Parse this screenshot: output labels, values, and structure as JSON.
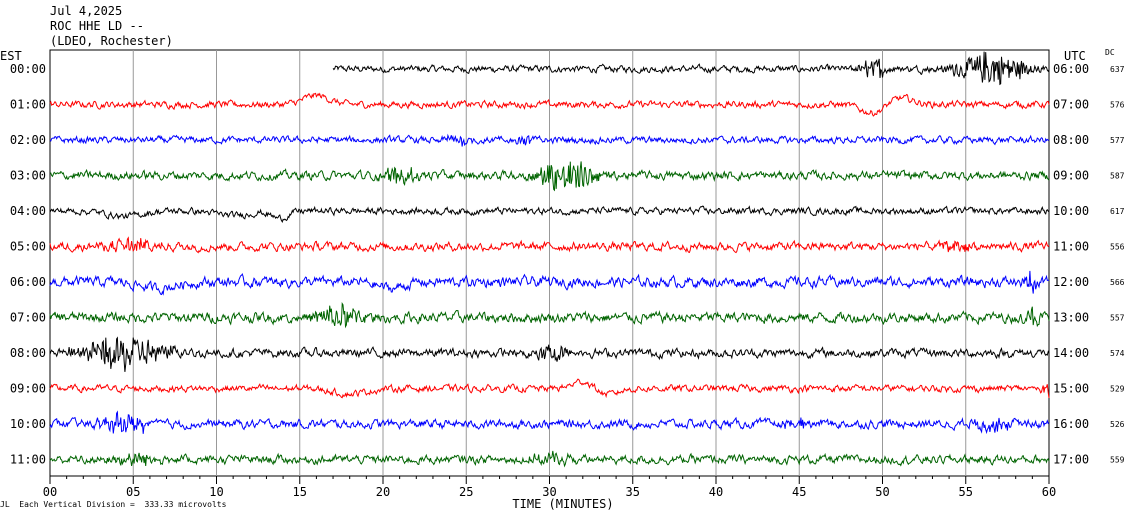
{
  "header": {
    "date": "Jul 4,2025",
    "station": "ROC HHE LD --",
    "network": "(LDEO, Rochester)"
  },
  "left_axis_title": "EST",
  "right_axis_title": "UTC",
  "dc_title": "DC",
  "footer": {
    "scale_note": "Each Vertical Division =  333.33 microvolts",
    "corner_mark": "JL"
  },
  "chart_data": {
    "type": "line",
    "title": "",
    "xlabel": "TIME (MINUTES)",
    "ylabel": "",
    "xlim": [
      0,
      60
    ],
    "xticks": [
      "00",
      "05",
      "10",
      "15",
      "20",
      "25",
      "30",
      "35",
      "40",
      "45",
      "50",
      "55",
      "60"
    ],
    "grid": true,
    "series": [
      {
        "est": "00:00",
        "utc": "06:00",
        "dc": "637",
        "color": "#000000",
        "start_min": 17,
        "noise": 4,
        "events": [
          {
            "t": 49.5,
            "amp": 10,
            "dur": 1.2
          },
          {
            "t": 56.5,
            "amp": 16,
            "dur": 3
          }
        ]
      },
      {
        "est": "01:00",
        "utc": "07:00",
        "dc": "576",
        "color": "#ff0000",
        "start_min": 0,
        "noise": 4,
        "events": [
          {
            "t": 16,
            "amp": -10,
            "dur": 1.5,
            "smooth": true
          },
          {
            "t": 49.5,
            "amp": 10,
            "dur": 1.5,
            "smooth": true
          },
          {
            "t": 51,
            "amp": -8,
            "dur": 1.5,
            "smooth": true
          }
        ]
      },
      {
        "est": "02:00",
        "utc": "08:00",
        "dc": "577",
        "color": "#0000ff",
        "start_min": 0,
        "noise": 4,
        "events": [
          {
            "t": 24.5,
            "amp": 6,
            "dur": 1
          },
          {
            "t": 28.5,
            "amp": 5,
            "dur": 1
          }
        ]
      },
      {
        "est": "03:00",
        "utc": "09:00",
        "dc": "587",
        "color": "#006400",
        "start_min": 0,
        "noise": 5,
        "events": [
          {
            "t": 21,
            "amp": 8,
            "dur": 1.5
          },
          {
            "t": 31,
            "amp": 16,
            "dur": 2.5
          }
        ]
      },
      {
        "est": "04:00",
        "utc": "10:00",
        "dc": "617",
        "color": "#000000",
        "start_min": 0,
        "noise": 4,
        "events": [
          {
            "t": 4.5,
            "amp": 6,
            "dur": 2,
            "smooth": true
          },
          {
            "t": 11,
            "amp": 5,
            "dur": 2,
            "smooth": true
          },
          {
            "t": 13.8,
            "amp": 8,
            "dur": 1,
            "smooth": true
          }
        ]
      },
      {
        "est": "05:00",
        "utc": "11:00",
        "dc": "556",
        "color": "#ff0000",
        "start_min": 0,
        "noise": 5,
        "events": [
          {
            "t": 5,
            "amp": 7,
            "dur": 2
          },
          {
            "t": 54.5,
            "amp": 6,
            "dur": 1.5
          }
        ]
      },
      {
        "est": "06:00",
        "utc": "12:00",
        "dc": "566",
        "color": "#0000ff",
        "start_min": 0,
        "noise": 6,
        "events": [
          {
            "t": 6.5,
            "amp": 7,
            "dur": 2,
            "smooth": true
          },
          {
            "t": 20.5,
            "amp": 7,
            "dur": 1.5,
            "smooth": true
          },
          {
            "t": 59,
            "amp": 9,
            "dur": 0.6
          }
        ]
      },
      {
        "est": "07:00",
        "utc": "13:00",
        "dc": "557",
        "color": "#006400",
        "start_min": 0,
        "noise": 6,
        "events": [
          {
            "t": 17.5,
            "amp": 12,
            "dur": 2
          },
          {
            "t": 59,
            "amp": 10,
            "dur": 0.6
          }
        ]
      },
      {
        "est": "08:00",
        "utc": "14:00",
        "dc": "574",
        "color": "#000000",
        "start_min": 0,
        "noise": 5,
        "events": [
          {
            "t": 4.5,
            "amp": 17,
            "dur": 3.5
          },
          {
            "t": 30,
            "amp": 8,
            "dur": 1.5
          }
        ]
      },
      {
        "est": "09:00",
        "utc": "15:00",
        "dc": "529",
        "color": "#ff0000",
        "start_min": 0,
        "noise": 4,
        "events": [
          {
            "t": 18,
            "amp": 6,
            "dur": 2,
            "smooth": true
          },
          {
            "t": 32,
            "amp": -8,
            "dur": 1.2,
            "smooth": true
          },
          {
            "t": 33.5,
            "amp": 7,
            "dur": 1.2,
            "smooth": true
          },
          {
            "t": 59.8,
            "amp": 12,
            "dur": 0.4
          }
        ]
      },
      {
        "est": "10:00",
        "utc": "16:00",
        "dc": "526",
        "color": "#0000ff",
        "start_min": 0,
        "noise": 5,
        "events": [
          {
            "t": 4.5,
            "amp": 9,
            "dur": 2
          },
          {
            "t": 45,
            "amp": 6,
            "dur": 1
          },
          {
            "t": 56.5,
            "amp": 7,
            "dur": 1.5
          }
        ]
      },
      {
        "est": "11:00",
        "utc": "17:00",
        "dc": "559",
        "color": "#006400",
        "start_min": 0,
        "noise": 5,
        "events": [
          {
            "t": 5,
            "amp": 6,
            "dur": 2
          },
          {
            "t": 30,
            "amp": 6,
            "dur": 1.5
          }
        ]
      }
    ]
  }
}
